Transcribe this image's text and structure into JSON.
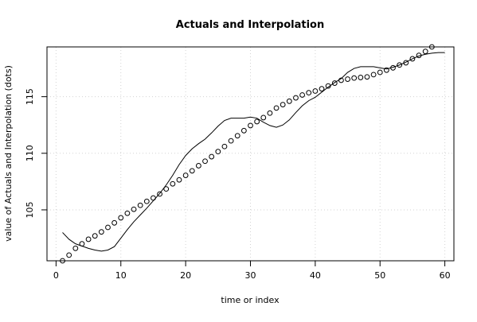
{
  "chart_data": {
    "type": "line",
    "title": "Actuals and Interpolation",
    "xlabel": "time or index",
    "ylabel": "value of Actuals and Interpolation (dots)",
    "xlim": [
      -1.4,
      61.4
    ],
    "ylim": [
      100.5,
      119.4
    ],
    "x_ticks": [
      0,
      10,
      20,
      30,
      40,
      50,
      60
    ],
    "y_ticks": [
      105,
      110,
      115
    ],
    "grid": true,
    "series": [
      {
        "style": "line",
        "x": [
          1,
          2,
          3,
          4,
          5,
          6,
          7,
          8,
          9,
          10,
          11,
          12,
          13,
          14,
          15,
          16,
          17,
          18,
          19,
          20,
          21,
          22,
          23,
          24,
          25,
          26,
          27,
          28,
          29,
          30,
          31,
          32,
          33,
          34,
          35,
          36,
          37,
          38,
          39,
          40,
          41,
          42,
          43,
          44,
          45,
          46,
          47,
          48,
          49,
          50,
          51,
          52,
          53,
          54,
          55,
          56,
          57,
          58,
          59,
          60
        ],
        "y": [
          103.0,
          102.4,
          102.0,
          101.8,
          101.6,
          101.45,
          101.35,
          101.45,
          101.75,
          102.5,
          103.25,
          103.95,
          104.55,
          105.15,
          105.8,
          106.45,
          107.2,
          108.05,
          109.0,
          109.8,
          110.4,
          110.85,
          111.25,
          111.8,
          112.4,
          112.9,
          113.1,
          113.1,
          113.1,
          113.2,
          113.1,
          112.75,
          112.45,
          112.3,
          112.5,
          112.95,
          113.6,
          114.2,
          114.65,
          114.95,
          115.4,
          115.85,
          116.25,
          116.6,
          117.15,
          117.5,
          117.65,
          117.65,
          117.65,
          117.55,
          117.45,
          117.6,
          117.8,
          118.05,
          118.35,
          118.6,
          118.75,
          118.85,
          118.9,
          118.9
        ]
      },
      {
        "style": "points",
        "x": [
          1,
          2,
          3,
          4,
          5,
          6,
          7,
          8,
          9,
          10,
          11,
          12,
          13,
          14,
          15,
          16,
          17,
          18,
          19,
          20,
          21,
          22,
          23,
          24,
          25,
          26,
          27,
          28,
          29,
          30,
          31,
          32,
          33,
          34,
          35,
          36,
          37,
          38,
          39,
          40,
          41,
          42,
          43,
          44,
          45,
          46,
          47,
          48,
          49,
          50,
          51,
          52,
          53,
          54,
          55,
          56,
          57,
          58
        ],
        "y": [
          100.5,
          101.0,
          101.6,
          102.0,
          102.4,
          102.7,
          103.05,
          103.45,
          103.85,
          104.3,
          104.7,
          105.05,
          105.4,
          105.75,
          106.05,
          106.4,
          106.85,
          107.3,
          107.65,
          108.05,
          108.45,
          108.9,
          109.3,
          109.7,
          110.15,
          110.6,
          111.1,
          111.55,
          112.0,
          112.45,
          112.8,
          113.15,
          113.55,
          114.0,
          114.3,
          114.6,
          114.9,
          115.15,
          115.35,
          115.5,
          115.7,
          115.95,
          116.2,
          116.45,
          116.55,
          116.65,
          116.7,
          116.75,
          116.95,
          117.15,
          117.35,
          117.55,
          117.8,
          118.0,
          118.35,
          118.65,
          119.0,
          119.4
        ]
      }
    ]
  }
}
